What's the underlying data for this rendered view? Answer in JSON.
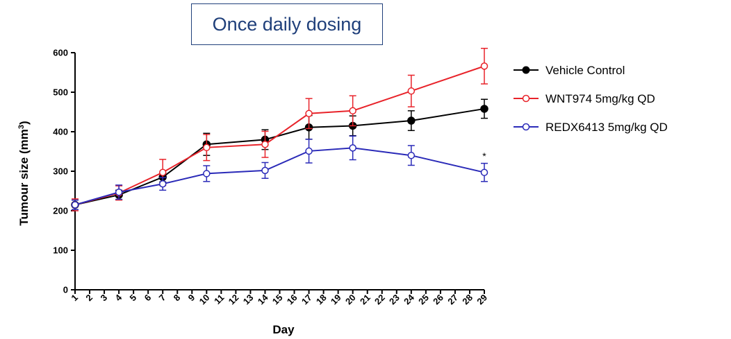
{
  "chart_data": {
    "type": "line",
    "title": "Once daily dosing",
    "xlabel": "Day",
    "ylabel": "Tumour size (mm",
    "ylabel_sup": "3",
    "ylabel_close": ")",
    "ylim": [
      0,
      600
    ],
    "yticks": [
      "0",
      "100",
      "200",
      "300",
      "400",
      "500",
      "600"
    ],
    "xlim": [
      1,
      29
    ],
    "xticks": [
      "1",
      "2",
      "3",
      "4",
      "5",
      "6",
      "7",
      "8",
      "9",
      "10",
      "11",
      "12",
      "13",
      "14",
      "15",
      "16",
      "17",
      "18",
      "19",
      "20",
      "21",
      "22",
      "23",
      "24",
      "25",
      "26",
      "27",
      "28",
      "29"
    ],
    "series": [
      {
        "name": "Vehicle Control",
        "color": "#000000",
        "marker": "filled-circle",
        "x": [
          1,
          4,
          7,
          10,
          14,
          17,
          20,
          24,
          29
        ],
        "y": [
          215,
          240,
          285,
          368,
          380,
          411,
          415,
          428,
          458
        ],
        "err": [
          12,
          12,
          12,
          28,
          25,
          30,
          25,
          25,
          24
        ]
      },
      {
        "name": "WNT974 5mg/kg QD",
        "color": "#e8232a",
        "marker": "open-circle",
        "x": [
          1,
          4,
          7,
          10,
          14,
          17,
          20,
          24,
          29
        ],
        "y": [
          215,
          245,
          297,
          360,
          368,
          446,
          453,
          503,
          566
        ],
        "err": [
          15,
          18,
          33,
          33,
          33,
          38,
          38,
          40,
          45
        ]
      },
      {
        "name": "REDX6413 5mg/kg QD",
        "color": "#2a2ab8",
        "marker": "open-circle",
        "x": [
          1,
          4,
          7,
          10,
          14,
          17,
          20,
          24,
          29
        ],
        "y": [
          215,
          247,
          268,
          294,
          302,
          351,
          359,
          340,
          297
        ],
        "err": [
          12,
          18,
          16,
          20,
          20,
          30,
          30,
          25,
          23
        ]
      }
    ],
    "annotations": [
      {
        "text": "*",
        "x": 29,
        "y": 330
      }
    ],
    "legend_position": "right"
  }
}
